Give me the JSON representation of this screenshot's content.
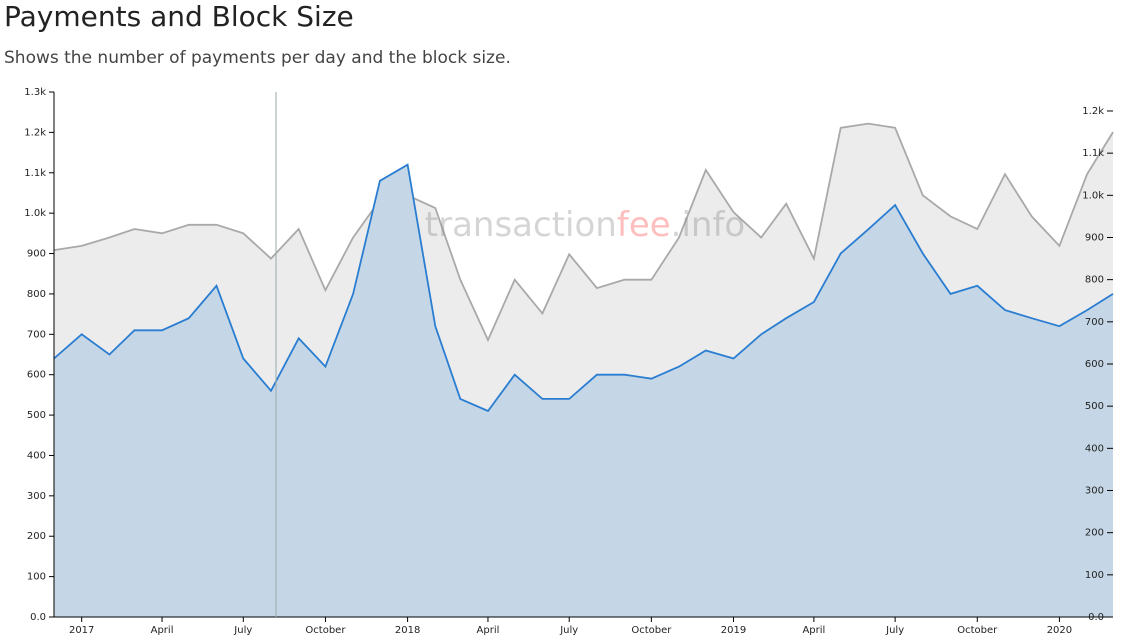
{
  "chart_data": {
    "type": "area",
    "title": "Payments and Block Size",
    "subtitle": "Shows the number of payments per day and the block size.",
    "watermark": [
      "transaction",
      "fee",
      ".info"
    ],
    "x": [
      "2016-12",
      "2017-01",
      "2017-02",
      "2017-03",
      "2017-04",
      "2017-05",
      "2017-06",
      "2017-07",
      "2017-08",
      "2017-09",
      "2017-10",
      "2017-11",
      "2017-12",
      "2018-01",
      "2018-02",
      "2018-03",
      "2018-04",
      "2018-05",
      "2018-06",
      "2018-07",
      "2018-08",
      "2018-09",
      "2018-10",
      "2018-11",
      "2018-12",
      "2019-01",
      "2019-02",
      "2019-03",
      "2019-04",
      "2019-05",
      "2019-06",
      "2019-07",
      "2019-08",
      "2019-09",
      "2019-10",
      "2019-11",
      "2019-12",
      "2020-01",
      "2020-02",
      "2020-03"
    ],
    "xlim": [
      "2016-12",
      "2020-03"
    ],
    "xticks": [
      {
        "value": "2017-01",
        "label": "2017"
      },
      {
        "value": "2017-04",
        "label": "April"
      },
      {
        "value": "2017-07",
        "label": "July"
      },
      {
        "value": "2017-10",
        "label": "October"
      },
      {
        "value": "2018-01",
        "label": "2018"
      },
      {
        "value": "2018-04",
        "label": "April"
      },
      {
        "value": "2018-07",
        "label": "July"
      },
      {
        "value": "2018-10",
        "label": "October"
      },
      {
        "value": "2019-01",
        "label": "2019"
      },
      {
        "value": "2019-04",
        "label": "April"
      },
      {
        "value": "2019-07",
        "label": "July"
      },
      {
        "value": "2019-10",
        "label": "October"
      },
      {
        "value": "2020-01",
        "label": "2020"
      }
    ],
    "ylim": [
      0,
      1300
    ],
    "yticks": [
      {
        "value": 0,
        "label": "0.0"
      },
      100,
      200,
      300,
      400,
      500,
      600,
      700,
      800,
      900,
      {
        "value": 1000,
        "label": "1.0k"
      },
      {
        "value": 1100,
        "label": "1.1k"
      },
      {
        "value": 1200,
        "label": "1.2k"
      },
      {
        "value": 1300,
        "label": "1.3k"
      }
    ],
    "y2lim": [
      0,
      1245
    ],
    "y2ticks": [
      {
        "value": 0,
        "label": "0.0"
      },
      100,
      200,
      300,
      400,
      500,
      600,
      700,
      800,
      900,
      {
        "value": 1000,
        "label": "1.0k"
      },
      {
        "value": 1100,
        "label": "1.1k"
      },
      {
        "value": 1200,
        "label": "1.2k"
      }
    ],
    "series": [
      {
        "color": "#a9a9a9",
        "fill": "#ececec",
        "axis": "y2",
        "values": [
          870,
          880,
          900,
          920,
          910,
          930,
          930,
          910,
          850,
          920,
          775,
          900,
          989,
          1000,
          970,
          800,
          657,
          800,
          720,
          860,
          780,
          800,
          800,
          900,
          1060,
          960,
          900,
          980,
          850,
          1160,
          1170,
          1160,
          1000,
          950,
          920,
          1050,
          950,
          880,
          1050,
          1150
        ]
      },
      {
        "color": "#2a7dd1",
        "fill": "#c5d7e6",
        "axis": "y",
        "values": [
          640,
          700,
          650,
          710,
          710,
          740,
          820,
          640,
          560,
          690,
          620,
          800,
          1080,
          1120,
          720,
          540,
          510,
          600,
          540,
          540,
          600,
          600,
          590,
          620,
          660,
          640,
          700,
          740,
          780,
          900,
          960,
          1020,
          900,
          800,
          820,
          760,
          740,
          720,
          760,
          800
        ]
      }
    ]
  }
}
